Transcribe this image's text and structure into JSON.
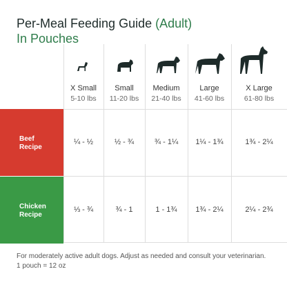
{
  "header": {
    "title": "Per-Meal Feeding Guide",
    "qualifier": "(Adult)",
    "subtitle": "In Pouches"
  },
  "table": {
    "columns": [
      {
        "name": "X Small",
        "weight": "5-10 lbs"
      },
      {
        "name": "Small",
        "weight": "11-20 lbs"
      },
      {
        "name": "Medium",
        "weight": "21-40 lbs"
      },
      {
        "name": "Large",
        "weight": "41-60 lbs"
      },
      {
        "name": "X Large",
        "weight": "61-80 lbs"
      }
    ],
    "rows": [
      {
        "label": "Beef Recipe",
        "values": [
          "¼ - ½",
          "½ - ¾",
          "¾ - 1¼",
          "1¼ - 1¾",
          "1¾ - 2¼"
        ]
      },
      {
        "label": "Chicken Recipe",
        "values": [
          "⅓ - ¾",
          "¾ - 1",
          "1 - 1¾",
          "1¾ - 2¼",
          "2¼ - 2¾"
        ]
      }
    ]
  },
  "footnote": [
    "For moderately active adult dogs. Adjust as needed and consult your veterinarian.",
    "1 pouch = 12 oz"
  ]
}
